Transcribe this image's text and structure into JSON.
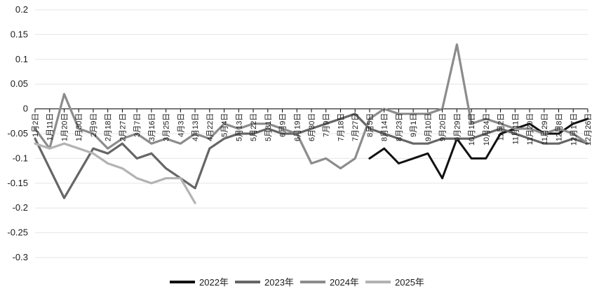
{
  "chart_data": {
    "type": "line",
    "title": "",
    "xlabel": "",
    "ylabel": "",
    "ylim": [
      -0.3,
      0.2
    ],
    "yticks": [
      "0.2",
      "0.15",
      "0.1",
      "0.05",
      "0",
      "-0.05",
      "-0.1",
      "-0.15",
      "-0.2",
      "-0.25",
      "-0.3"
    ],
    "xlabels": [
      "1月2日",
      "1月11日",
      "1月20日",
      "1月30日",
      "2月9日",
      "2月18日",
      "2月27日",
      "3月7日",
      "3月16日",
      "3月25日",
      "4月3日",
      "4月13日",
      "4月22日",
      "5月4日",
      "5月13日",
      "5月22日",
      "5月31日",
      "6月9日",
      "6月19日",
      "6月30日",
      "7月9日",
      "7月18日",
      "7月27日",
      "8月5日",
      "8月14日",
      "8月23日",
      "9月1日",
      "9月10日",
      "9月20日",
      "9月29日",
      "10月15日",
      "10月24日",
      "11月2日",
      "11月11日",
      "11月20日",
      "11月29日",
      "12月8日",
      "12月17日",
      "12月26日"
    ],
    "grid": true,
    "legend_position": "bottom",
    "series": [
      {
        "name": "2022年",
        "color": "#111111",
        "values": [
          null,
          null,
          null,
          null,
          null,
          null,
          null,
          null,
          null,
          null,
          null,
          null,
          null,
          null,
          null,
          null,
          null,
          null,
          null,
          null,
          null,
          null,
          null,
          -0.1,
          -0.08,
          -0.11,
          -0.1,
          -0.09,
          -0.14,
          -0.06,
          -0.1,
          -0.1,
          -0.05,
          -0.04,
          -0.03,
          -0.05,
          -0.05,
          -0.03,
          -0.02
        ]
      },
      {
        "name": "2023年",
        "color": "#666666",
        "values": [
          -0.06,
          -0.12,
          -0.18,
          -0.13,
          -0.08,
          -0.09,
          -0.07,
          -0.1,
          -0.09,
          -0.12,
          -0.14,
          -0.16,
          -0.08,
          -0.06,
          -0.05,
          -0.05,
          -0.04,
          -0.05,
          -0.05,
          -0.04,
          -0.03,
          -0.02,
          -0.01,
          -0.04,
          -0.05,
          -0.06,
          -0.07,
          -0.07,
          -0.06,
          -0.06,
          -0.06,
          -0.05,
          -0.04,
          -0.05,
          -0.06,
          -0.07,
          -0.07,
          -0.06,
          -0.07
        ]
      },
      {
        "name": "2024年",
        "color": "#8c8c8c",
        "values": [
          -0.04,
          -0.08,
          0.03,
          -0.04,
          -0.05,
          -0.08,
          -0.06,
          -0.05,
          -0.07,
          -0.06,
          -0.07,
          -0.05,
          -0.06,
          -0.03,
          -0.04,
          -0.03,
          -0.03,
          -0.04,
          -0.05,
          -0.11,
          -0.1,
          -0.12,
          -0.1,
          -0.02,
          0.0,
          -0.01,
          -0.01,
          -0.01,
          0.0,
          0.13,
          -0.03,
          -0.02,
          -0.03,
          -0.04,
          -0.04,
          -0.05,
          -0.04,
          -0.05,
          -0.07
        ]
      },
      {
        "name": "2025年",
        "color": "#b3b3b3",
        "values": [
          -0.07,
          -0.08,
          -0.07,
          -0.08,
          -0.09,
          -0.11,
          -0.12,
          -0.14,
          -0.15,
          -0.14,
          -0.14,
          -0.19,
          null,
          null,
          null,
          null,
          null,
          null,
          null,
          null,
          null,
          null,
          null,
          null,
          null,
          null,
          null,
          null,
          null,
          null,
          null,
          null,
          null,
          null,
          null,
          null,
          null,
          null,
          null
        ]
      }
    ]
  }
}
